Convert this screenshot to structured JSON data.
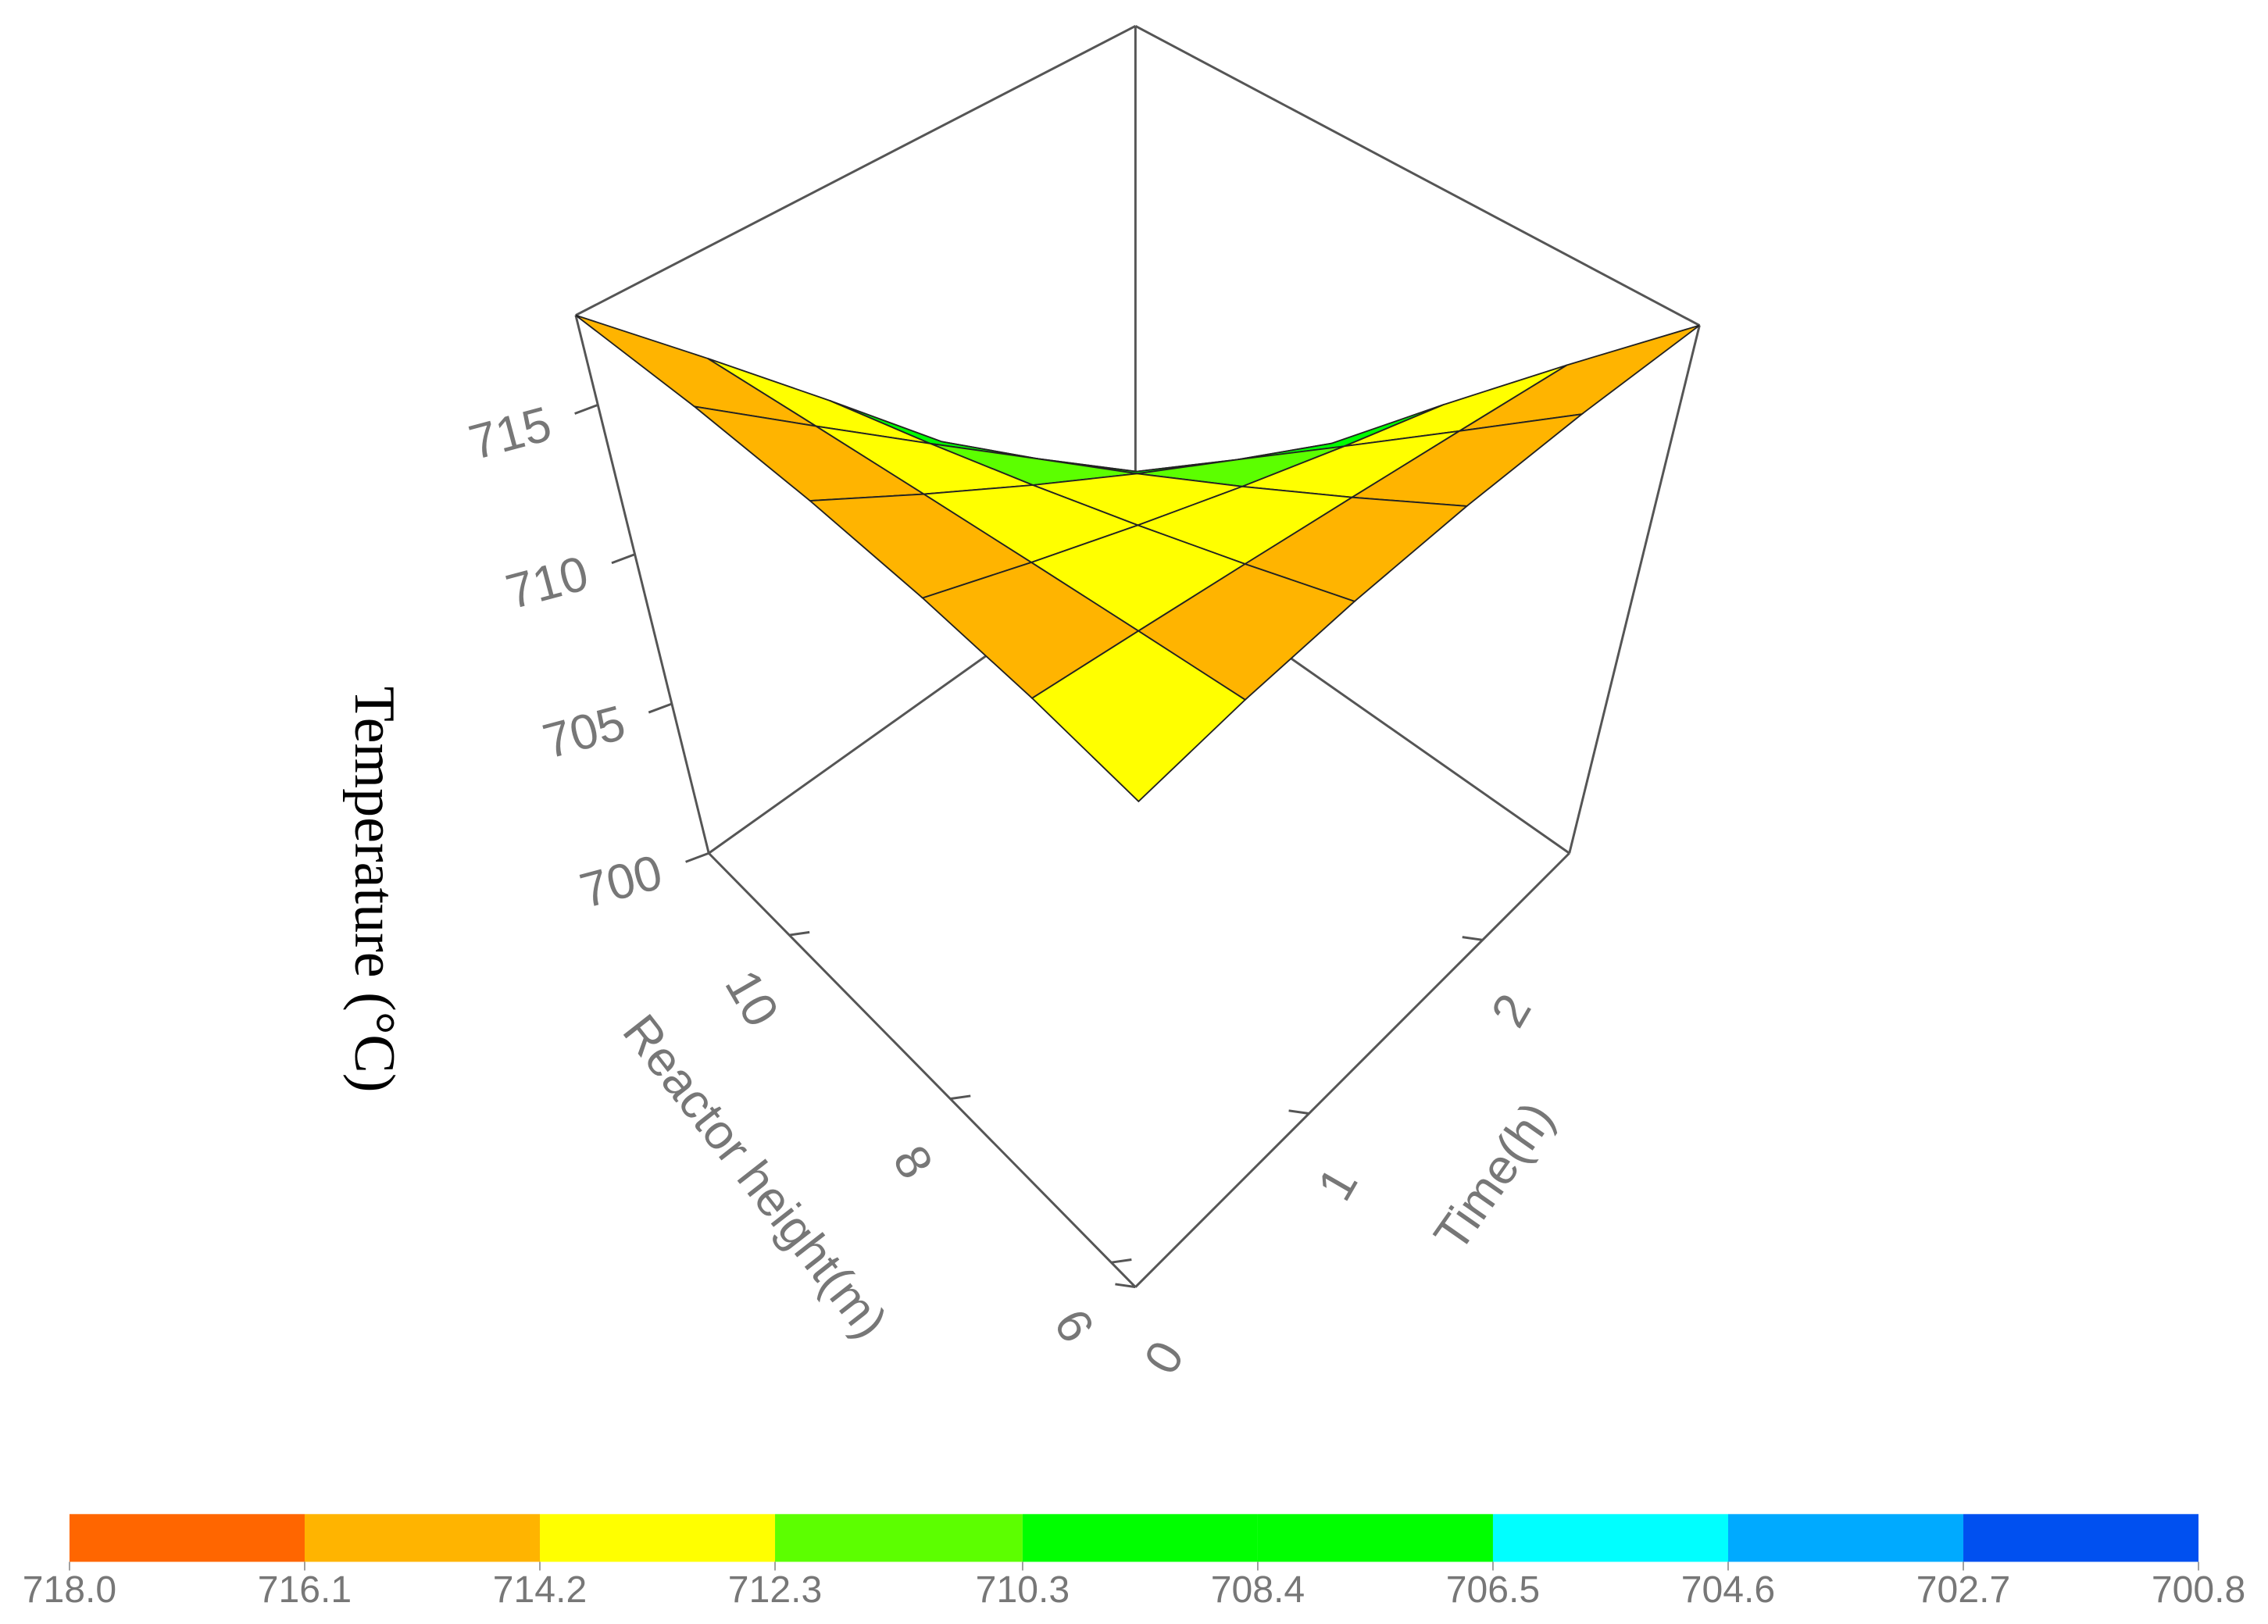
{
  "chart_data": {
    "type": "surface3d",
    "zlabel": "Temperature (°C)",
    "xlabel": "Reactor height(m)",
    "ylabel": "Time(h)",
    "x": [
      5.7,
      6.76,
      7.82,
      8.88,
      9.94,
      11.0
    ],
    "y": [
      0,
      0.5,
      1,
      1.5,
      2,
      2.5
    ],
    "z": [
      [
        713,
        714,
        715,
        716,
        717,
        718
      ],
      [
        714,
        714.12,
        714.24,
        714.36,
        714.48,
        714.6
      ],
      [
        715,
        714.24,
        713.48,
        712.72,
        711.96,
        711.2
      ],
      [
        716,
        714.36,
        712.72,
        711.08,
        709.44,
        707.8
      ],
      [
        717,
        714.48,
        711.96,
        709.44,
        706.92,
        704.4
      ],
      [
        718,
        714.6,
        711.2,
        707.8,
        704.4,
        701
      ]
    ],
    "xlim": [
      5.7,
      11.0
    ],
    "ylim": [
      0,
      2.5
    ],
    "zlim": [
      700,
      718
    ],
    "xticks": [
      6,
      8,
      10
    ],
    "yticks": [
      0,
      1,
      2
    ],
    "zticks": [
      700,
      705,
      710,
      715
    ],
    "colorbar": {
      "ticks": [
        {
          "value": 718,
          "label": "718.0"
        },
        716.1,
        714.2,
        712.3,
        710.3,
        708.4,
        706.5,
        704.6,
        702.7,
        700.8
      ],
      "colors": [
        "#ff6600",
        "#ffb400",
        "#ffff00",
        "#5cff00",
        "#00ff00",
        "#00ff00",
        "#00ffff",
        "#00aaff",
        "#0050f0"
      ]
    }
  }
}
